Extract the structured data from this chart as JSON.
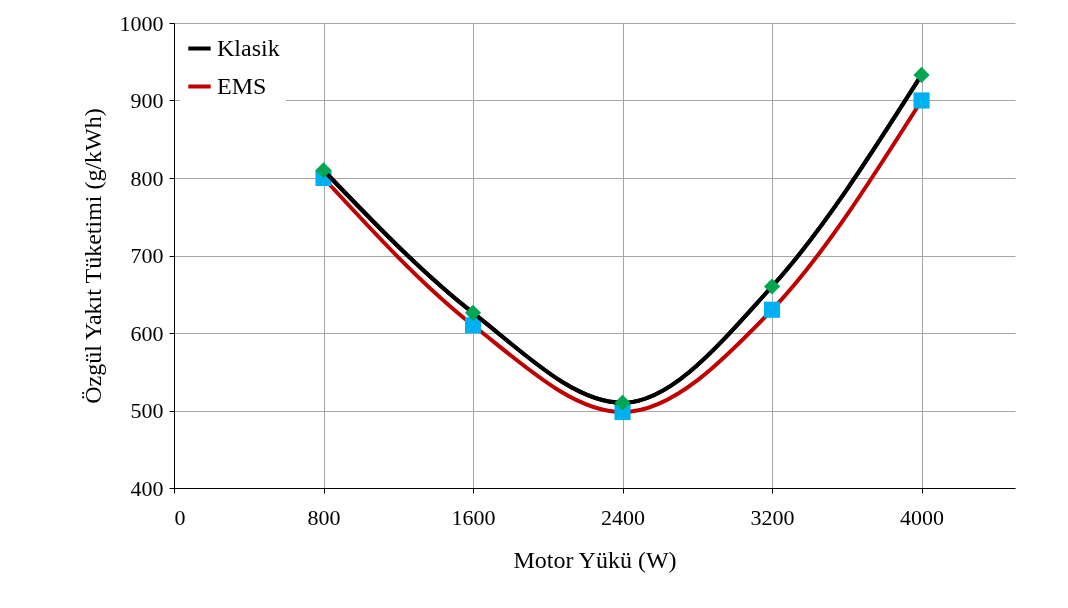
{
  "chart_data": {
    "type": "line",
    "xlabel": "Motor Yükü (W)",
    "ylabel": "Özgül Yakıt Tüketimi (g/kWh)",
    "x": [
      800,
      1600,
      2400,
      3200,
      4000
    ],
    "series": [
      {
        "name": "Klasik",
        "color": "#000000",
        "colors": [
          "#00a651",
          "#00a651",
          "#00a651",
          "#00a651",
          "#00a651"
        ],
        "marker": "diamond",
        "values": [
          810,
          626,
          510,
          660,
          933
        ]
      },
      {
        "name": "EMS",
        "color": "#c00000",
        "colors": [
          "#00b0f0",
          "#00b0f0",
          "#00b0f0",
          "#00b0f0",
          "#00b0f0"
        ],
        "marker": "square",
        "values": [
          800,
          610,
          498,
          630,
          900
        ]
      }
    ],
    "xlim": [
      0,
      4500
    ],
    "xticks": [
      0,
      800,
      1600,
      2400,
      3200,
      4000
    ],
    "ylim": [
      400,
      1000
    ],
    "yticks": [
      400,
      500,
      600,
      700,
      800,
      900,
      1000
    ],
    "grid": true,
    "legend": "top left",
    "line_style": "solid"
  }
}
